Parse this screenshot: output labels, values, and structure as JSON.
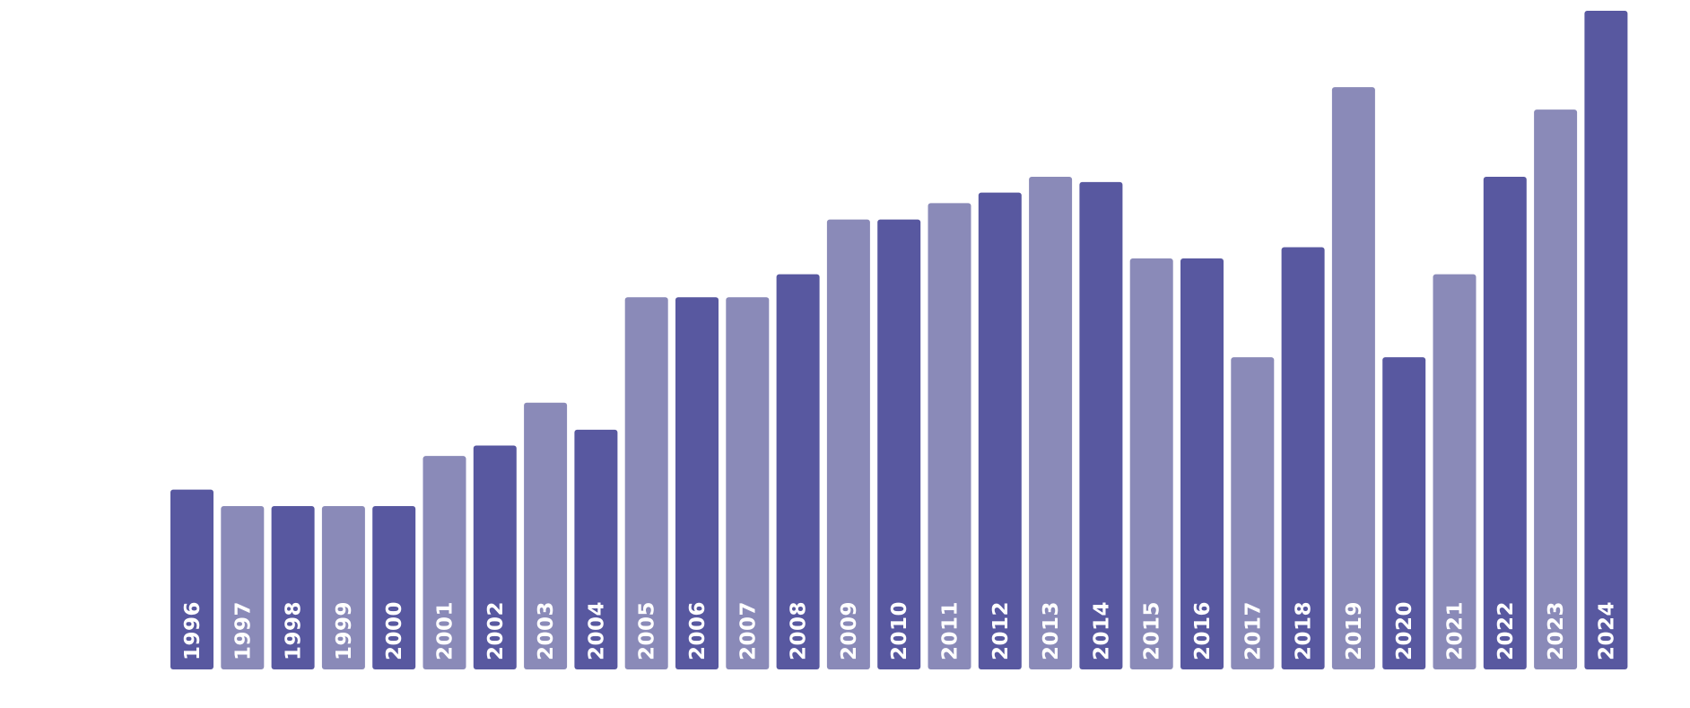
{
  "chart_data": {
    "type": "bar",
    "title": "",
    "xlabel": "",
    "ylabel": "",
    "ylim": [
      0,
      100
    ],
    "grid": false,
    "categories": [
      "1996",
      "1997",
      "1998",
      "1999",
      "2000",
      "2001",
      "2002",
      "2003",
      "2004",
      "2005",
      "2006",
      "2007",
      "2008",
      "2009",
      "2010",
      "2011",
      "2012",
      "2013",
      "2014",
      "2015",
      "2016",
      "2017",
      "2018",
      "2019",
      "2020",
      "2021",
      "2022",
      "2023",
      "2024"
    ],
    "values": [
      27.3,
      24.8,
      24.8,
      24.8,
      24.8,
      32.4,
      34.0,
      40.5,
      36.4,
      56.5,
      56.5,
      56.5,
      60.0,
      68.3,
      68.3,
      70.8,
      72.4,
      74.8,
      74.0,
      62.4,
      62.4,
      47.4,
      64.1,
      88.4,
      47.4,
      60.0,
      74.8,
      85.0,
      100
    ],
    "colors": {
      "dark": "#5858a0",
      "light": "#8a8ab8",
      "label": "#ffffff"
    }
  }
}
